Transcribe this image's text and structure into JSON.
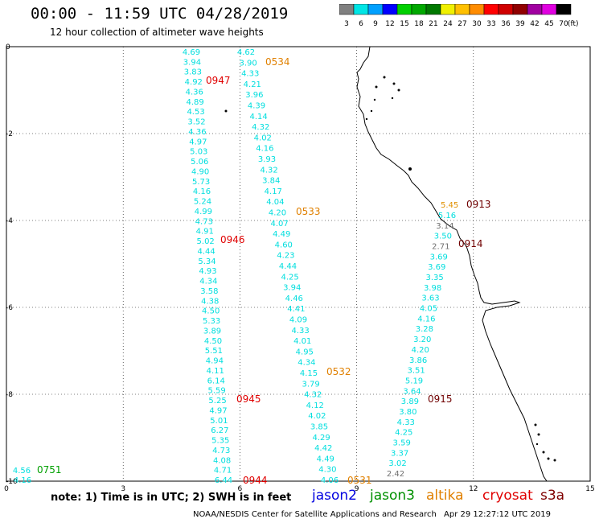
{
  "header": {
    "title": "00:00 - 11:59 UTC 04/28/2019",
    "subtitle": "12 hour collection of altimeter wave heights"
  },
  "color_scale": {
    "unit": "(ft)",
    "bins": [
      {
        "label": "3",
        "color": "#808080"
      },
      {
        "label": "6",
        "color": "#00e5e5"
      },
      {
        "label": "9",
        "color": "#00a0ff"
      },
      {
        "label": "12",
        "color": "#0000ff"
      },
      {
        "label": "15",
        "color": "#00d000"
      },
      {
        "label": "18",
        "color": "#00a800"
      },
      {
        "label": "21",
        "color": "#007800"
      },
      {
        "label": "24",
        "color": "#f0f000"
      },
      {
        "label": "27",
        "color": "#ffc000"
      },
      {
        "label": "30",
        "color": "#ff8c00"
      },
      {
        "label": "33",
        "color": "#ff0000"
      },
      {
        "label": "36",
        "color": "#d00000"
      },
      {
        "label": "39",
        "color": "#900000"
      },
      {
        "label": "42",
        "color": "#a000a0"
      },
      {
        "label": "45",
        "color": "#e000e0"
      },
      {
        "label": "70",
        "color": "#000000"
      }
    ]
  },
  "axes": {
    "x_ticks": [
      "0",
      "3",
      "6",
      "9",
      "12",
      "15"
    ],
    "y_ticks": [
      "0",
      "-2",
      "-4",
      "-6",
      "-8",
      "-10"
    ],
    "xlim": [
      0,
      15
    ],
    "ylim": [
      -10,
      0
    ]
  },
  "track_colors": {
    "jason2": "#00dede",
    "altika": "#e08000",
    "cryosat": "#e00000",
    "s3a": "#700000",
    "gray": "#707070",
    "jason3": "#00a000",
    "orange": "#e09000"
  },
  "tracks": [
    {
      "name": "track-left",
      "color_key": "jason2",
      "values": [
        "4.69",
        "3.94",
        "3.83",
        "4.92",
        "4.36",
        "4.89",
        "4.53",
        "3.52",
        "4.36",
        "4.97",
        "5.03",
        "5.06",
        "4.90",
        "5.73",
        "4.16",
        "5.24",
        "4.99",
        "4.73",
        "4.91",
        "5.02",
        "4.44",
        "5.34",
        "4.93",
        "4.34",
        "3.58",
        "4.38",
        "4.50",
        "5.33",
        "3.89",
        "4.50",
        "5.51",
        "4.94",
        "4.11",
        "6.14",
        "5.59",
        "5.25",
        "4.97",
        "5.01",
        "6.27",
        "5.35",
        "4.73",
        "4.08",
        "4.71",
        "6.44"
      ]
    },
    {
      "name": "track-middle",
      "color_key": "jason2",
      "values": [
        "4.62",
        "3.90",
        "4.33",
        "4.21",
        "3.96",
        "4.39",
        "4.14",
        "4.32",
        "4.02",
        "4.16",
        "3.93",
        "4.32",
        "3.84",
        "4.17",
        "4.04",
        "4.20",
        "4.07",
        "4.49",
        "4.60",
        "4.23",
        "4.44",
        "4.25",
        "3.94",
        "4.46",
        "4.41",
        "4.09",
        "4.33",
        "4.01",
        "4.95",
        "4.34",
        "4.15",
        "3.79",
        "4.32",
        "4.12",
        "4.02",
        "3.85",
        "4.29",
        "4.42",
        "4.49",
        "4.30",
        "4.06"
      ]
    },
    {
      "name": "track-right",
      "color_key": "jason2",
      "values": [
        "5.16",
        "3.14",
        "3.50",
        "2.71",
        "3.69",
        "3.69",
        "3.35",
        "3.98",
        "3.63",
        "4.05",
        "4.16",
        "3.28",
        "3.20",
        "4.20",
        "3.86",
        "3.51",
        "5.19",
        "3.64",
        "3.89",
        "3.80",
        "4.33",
        "4.25",
        "3.59",
        "3.37",
        "3.02",
        "2.42"
      ]
    },
    {
      "name": "track-bottom-left",
      "color_key": "jason2",
      "values": [
        "4.56",
        "4.16"
      ]
    }
  ],
  "time_labels": [
    {
      "text": "0534",
      "color_key": "altika"
    },
    {
      "text": "0947",
      "color_key": "cryosat"
    },
    {
      "text": "0533",
      "color_key": "altika"
    },
    {
      "text": "0946",
      "color_key": "cryosat"
    },
    {
      "text": "0532",
      "color_key": "altika"
    },
    {
      "text": "0945",
      "color_key": "cryosat"
    },
    {
      "text": "0944",
      "color_key": "cryosat"
    },
    {
      "text": "0531",
      "color_key": "altika"
    },
    {
      "text": "0913",
      "color_key": "s3a"
    },
    {
      "text": "0914",
      "color_key": "s3a"
    },
    {
      "text": "0915",
      "color_key": "s3a"
    },
    {
      "text": "0751",
      "color_key": "jason3"
    }
  ],
  "extra_value": {
    "text": "5.45",
    "color_key": "orange"
  },
  "footer": {
    "note": "note:  1) Time is in UTC;  2) SWH is in feet",
    "legend": [
      {
        "label": "jason2",
        "color": "#0000e0"
      },
      {
        "label": "jason3",
        "color": "#009000"
      },
      {
        "label": "altika",
        "color": "#e08000"
      },
      {
        "label": "cryosat",
        "color": "#e00000"
      },
      {
        "label": "s3a",
        "color": "#800000"
      }
    ],
    "credits": "NOAA/NESDIS Center for Satellite Applications and Research",
    "timestamp": "Apr 29 12:27:12 UTC 2019"
  }
}
